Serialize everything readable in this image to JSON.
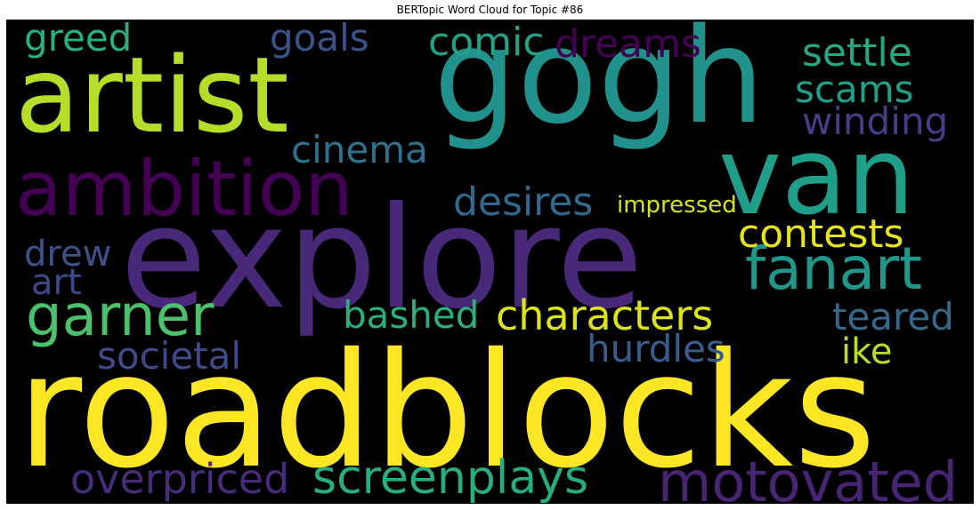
{
  "title": "BERTopic Word Cloud for Topic #86",
  "words": [
    {
      "text": "roadblocks",
      "color": "#fde725"
    },
    {
      "text": "explore",
      "color": "#482878"
    },
    {
      "text": "gogh",
      "color": "#21918c"
    },
    {
      "text": "artist",
      "color": "#b5de2b"
    },
    {
      "text": "van",
      "color": "#1f9e89"
    },
    {
      "text": "ambition",
      "color": "#440154"
    },
    {
      "text": "motovated",
      "color": "#482475"
    },
    {
      "text": "fanart",
      "color": "#1f988b"
    },
    {
      "text": "garner",
      "color": "#4ac16d"
    },
    {
      "text": "characters",
      "color": "#dde318"
    },
    {
      "text": "screenplays",
      "color": "#26ad81"
    },
    {
      "text": "overpriced",
      "color": "#472c7a"
    },
    {
      "text": "contests",
      "color": "#e5e419"
    },
    {
      "text": "dreams",
      "color": "#440154"
    },
    {
      "text": "comic",
      "color": "#20a386"
    },
    {
      "text": "settle",
      "color": "#22a884"
    },
    {
      "text": "goals",
      "color": "#3b528b"
    },
    {
      "text": "greed",
      "color": "#29af7f"
    },
    {
      "text": "desires",
      "color": "#31688e"
    },
    {
      "text": "winding",
      "color": "#433e85"
    },
    {
      "text": "scams",
      "color": "#1fa088"
    },
    {
      "text": "cinema",
      "color": "#2c728e"
    },
    {
      "text": "bashed",
      "color": "#2ab07f"
    },
    {
      "text": "teared",
      "color": "#31688e"
    },
    {
      "text": "hurdles",
      "color": "#365d8d"
    },
    {
      "text": "societal",
      "color": "#3e4a89"
    },
    {
      "text": "drew",
      "color": "#3b528b"
    },
    {
      "text": "art",
      "color": "#3e4989"
    },
    {
      "text": "ike",
      "color": "#b8de29"
    },
    {
      "text": "impressed",
      "color": "#d8e219"
    }
  ]
}
